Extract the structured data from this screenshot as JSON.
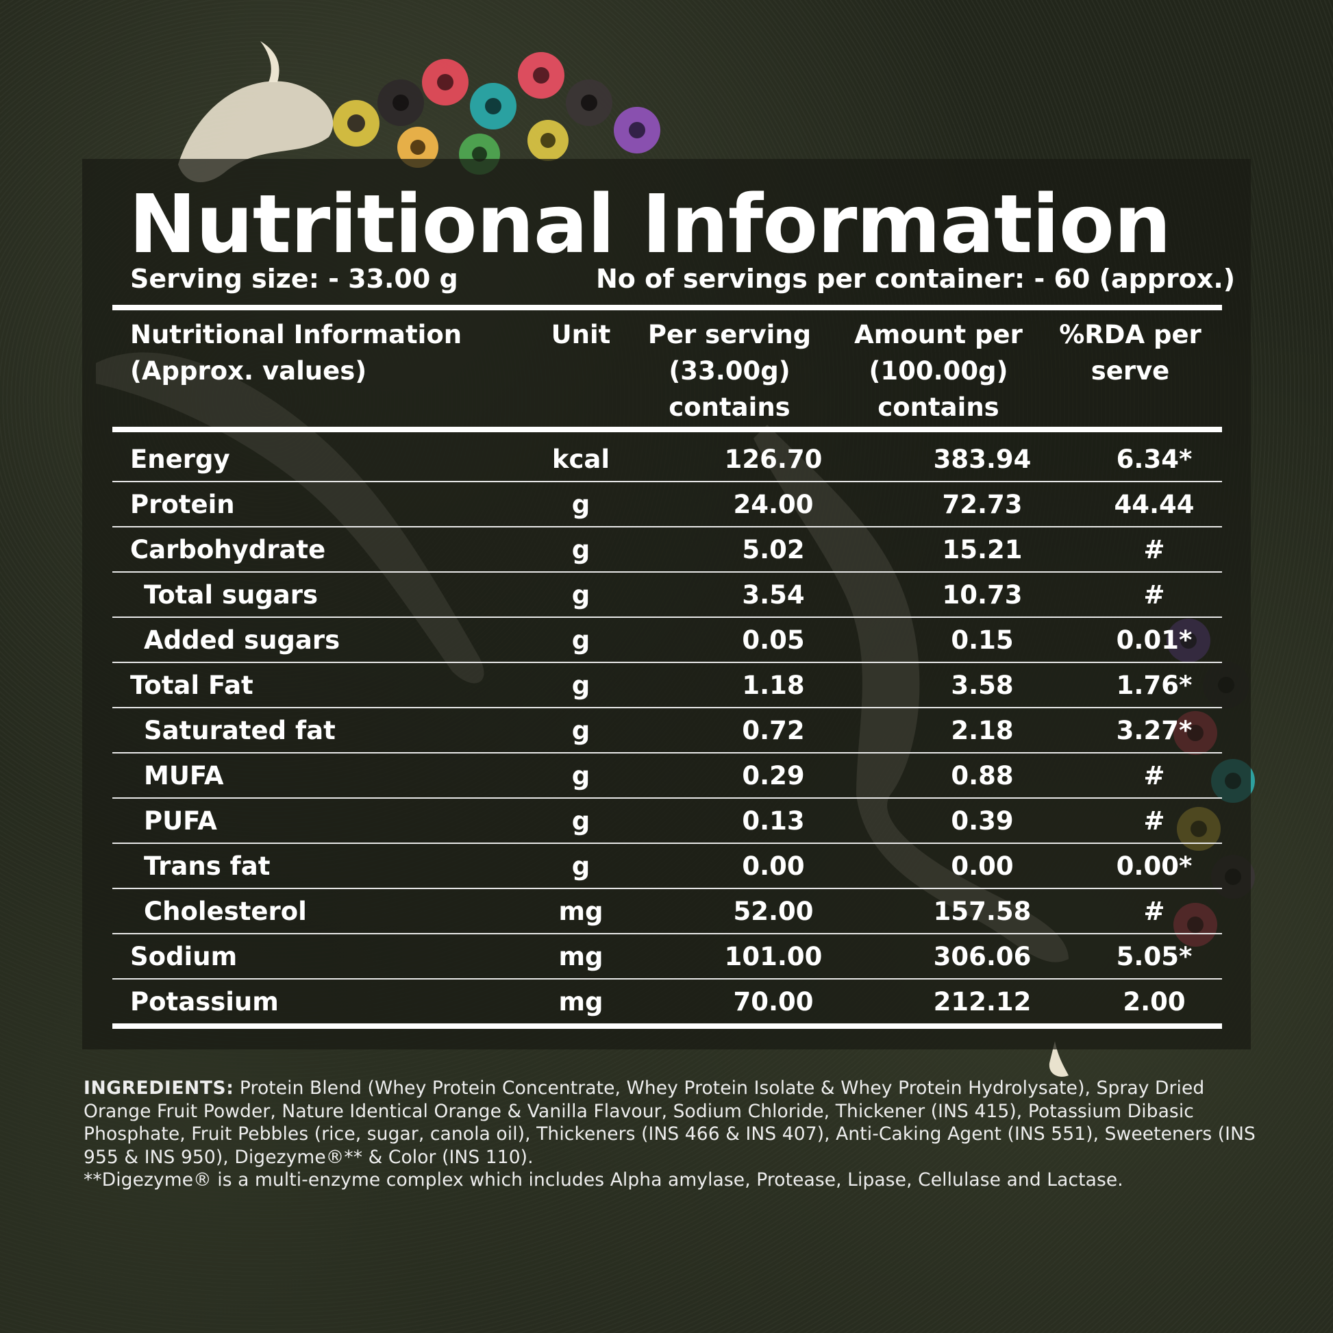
{
  "title": "Nutritional Information",
  "serving_size": "Serving size: - 33.00 g",
  "servings_per_container": "No of servings per container: - 60 (approx.)",
  "headers": {
    "nutrient": [
      "Nutritional Information",
      "(Approx. values)"
    ],
    "unit": [
      "Unit"
    ],
    "per_serving": [
      "Per serving",
      "(33.00g)",
      "contains"
    ],
    "per_100g": [
      "Amount per",
      "(100.00g)",
      "contains"
    ],
    "rda": [
      "%RDA per",
      "serve"
    ]
  },
  "rows": [
    {
      "name": "Energy",
      "unit": "kcal",
      "per_serving": "126.70",
      "per_100g": "383.94",
      "rda": "6.34*"
    },
    {
      "name": "Protein",
      "unit": "g",
      "per_serving": "24.00",
      "per_100g": "72.73",
      "rda": "44.44"
    },
    {
      "name": "Carbohydrate",
      "unit": "g",
      "per_serving": "5.02",
      "per_100g": "15.21",
      "rda": "#"
    },
    {
      "name": "Total sugars",
      "unit": "g",
      "per_serving": "3.54",
      "per_100g": "10.73",
      "rda": "#"
    },
    {
      "name": "Added sugars",
      "unit": "g",
      "per_serving": "0.05",
      "per_100g": "0.15",
      "rda": "0.01*"
    },
    {
      "name": "Total Fat",
      "unit": "g",
      "per_serving": "1.18",
      "per_100g": "3.58",
      "rda": "1.76*"
    },
    {
      "name": "Saturated fat",
      "unit": "g",
      "per_serving": "0.72",
      "per_100g": "2.18",
      "rda": "3.27*"
    },
    {
      "name": "MUFA",
      "unit": "g",
      "per_serving": "0.29",
      "per_100g": "0.88",
      "rda": "#"
    },
    {
      "name": "PUFA",
      "unit": "g",
      "per_serving": "0.13",
      "per_100g": "0.39",
      "rda": "#"
    },
    {
      "name": "Trans fat",
      "unit": "g",
      "per_serving": "0.00",
      "per_100g": "0.00",
      "rda": "0.00*"
    },
    {
      "name": "Cholesterol",
      "unit": "mg",
      "per_serving": "52.00",
      "per_100g": "157.58",
      "rda": "#"
    },
    {
      "name": "Sodium",
      "unit": "mg",
      "per_serving": "101.00",
      "per_100g": "306.06",
      "rda": "5.05*"
    },
    {
      "name": "Potassium",
      "unit": "mg",
      "per_serving": "70.00",
      "per_100g": "212.12",
      "rda": "2.00"
    }
  ],
  "ingredients": {
    "label": "INGREDIENTS:",
    "text": " Protein Blend (Whey Protein Concentrate, Whey Protein Isolate & Whey Protein Hydrolysate), Spray Dried Orange Fruit Powder, Nature Identical Orange & Vanilla Flavour, Sodium Chloride, Thickener (INS 415), Potassium Dibasic Phosphate, Fruit Pebbles (rice, sugar, canola oil), Thickeners (INS 466 & INS 407), Anti-Caking Agent (INS 551), Sweeteners (INS 955 & INS 950), Digezyme®** & Color (INS 110).",
    "footnote": "**Digezyme® is a multi-enzyme complex which includes Alpha amylase, Protease, Lipase, Cellulase and Lactase."
  }
}
